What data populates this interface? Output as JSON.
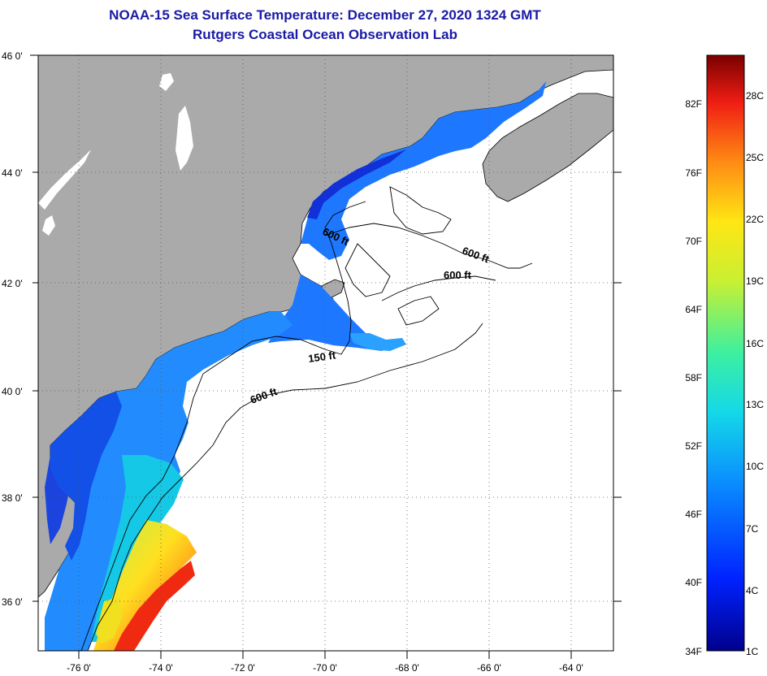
{
  "title": {
    "line1": "NOAA-15 Sea Surface Temperature:  December 27, 2020 1324 GMT",
    "line2": "Rutgers Coastal Ocean Observation Lab"
  },
  "map": {
    "lat_labels": [
      "46 0'",
      "44 0'",
      "42 0'",
      "40 0'",
      "38 0'",
      "36 0'"
    ],
    "lon_labels": [
      "-76 0'",
      "-74 0'",
      "-72 0'",
      "-70 0'",
      "-68 0'",
      "-66 0'",
      "-64 0'"
    ],
    "isobath_labels": [
      "600 ft",
      "600 ft",
      "600 ft",
      "150 ft",
      "600 ft"
    ],
    "colors": {
      "land": "#aaaaaa",
      "ocean": "#ffffff",
      "coast": "#000000"
    }
  },
  "colorbar": {
    "fahrenheit": [
      "82F",
      "76F",
      "70F",
      "64F",
      "58F",
      "52F",
      "46F",
      "40F",
      "34F"
    ],
    "celsius": [
      "28C",
      "25C",
      "22C",
      "19C",
      "16C",
      "13C",
      "10C",
      "7C",
      "4C",
      "1C"
    ]
  }
}
